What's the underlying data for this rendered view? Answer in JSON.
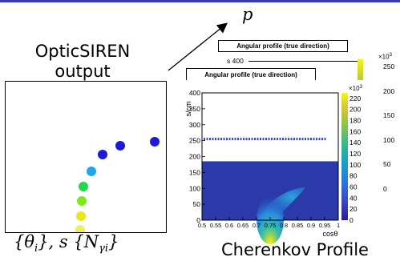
{
  "top_bar_color": "#3a3ab0",
  "momentum_label": "p",
  "left": {
    "title_line1": "OpticSIREN",
    "title_line2": "output",
    "caption_theta": "{θ",
    "caption_theta_sub": "i",
    "caption_middle": "},  s {N",
    "caption_n_sub": "γi",
    "caption_close": "}",
    "dots": [
      {
        "color": "#1a1ad8"
      },
      {
        "color": "#1a1ad8"
      },
      {
        "color": "#1a1ad8"
      },
      {
        "color": "#1aa8ee"
      },
      {
        "color": "#22d84a"
      },
      {
        "color": "#7ce81e"
      },
      {
        "color": "#e8e818"
      },
      {
        "color": "#f4ee5e"
      }
    ]
  },
  "right": {
    "caption": "Cherenkov Profile",
    "back_title": "Angular profile (true direction)",
    "front_title": "Angular profile (true direction)",
    "back_ylabel_fragment": "s 400",
    "back_scale_exp": "×10",
    "back_scale_sup": "3",
    "back_scale_ticks": [
      "250",
      "200",
      "150",
      "100",
      "50",
      "0"
    ],
    "back_theta_label": "θ",
    "back_x_tick": "1",
    "chart_data": {
      "type": "heatmap",
      "title": "Angular profile (true direction)",
      "xlabel": "cosθ",
      "ylabel": "s/cm",
      "xlim": [
        0.5,
        1.0
      ],
      "ylim": [
        0,
        400
      ],
      "x_ticks": [
        "0.5",
        "0.55",
        "0.6",
        "0.65",
        "0.7",
        "0.75",
        "0.8",
        "0.85",
        "0.9",
        "0.95",
        "1"
      ],
      "y_ticks": [
        "0",
        "50",
        "100",
        "150",
        "200",
        "250",
        "300",
        "350",
        "400"
      ],
      "background_band": {
        "s_from": 0,
        "s_to": 185
      },
      "dashed_line_s": 255,
      "cherenkov_peak_cos": 0.75,
      "colorbar": {
        "exponent_label": "×10",
        "exponent_sup": "3",
        "ticks": [
          "0",
          "20",
          "40",
          "60",
          "80",
          "100",
          "120",
          "140",
          "160",
          "180",
          "200",
          "220"
        ],
        "min": 0,
        "max": 230
      }
    }
  }
}
